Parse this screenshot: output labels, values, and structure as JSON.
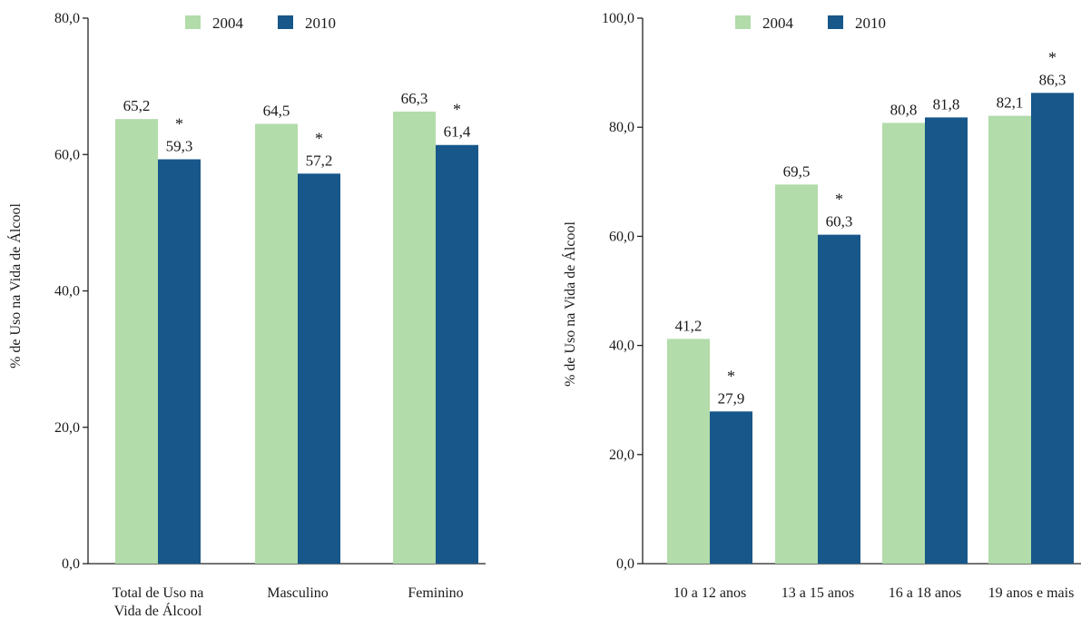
{
  "colors": {
    "s2004": "#b2dcaa",
    "s2010": "#17578a",
    "axis": "#222222"
  },
  "chart_data": [
    {
      "type": "bar",
      "title": "",
      "xlabel": "",
      "ylabel": "% de Uso na Vida de Álcool",
      "ylim": [
        0,
        80
      ],
      "yticks": [
        0,
        20,
        40,
        60,
        80
      ],
      "ytick_labels": [
        "0,0",
        "20,0",
        "40,0",
        "60,0",
        "80,0"
      ],
      "categories": [
        [
          "Total de Uso na",
          "Vida de Álcool"
        ],
        [
          "Masculino"
        ],
        [
          "Feminino"
        ]
      ],
      "legend": "top",
      "series": [
        {
          "name": "2004",
          "values": [
            65.2,
            64.5,
            66.3
          ],
          "labels": [
            "65,2",
            "64,5",
            "66,3"
          ],
          "sig": [
            false,
            false,
            false
          ]
        },
        {
          "name": "2010",
          "values": [
            59.3,
            57.2,
            61.4
          ],
          "labels": [
            "59,3",
            "57,2",
            "61,4"
          ],
          "sig": [
            true,
            true,
            true
          ]
        }
      ],
      "annotation": "*"
    },
    {
      "type": "bar",
      "title": "",
      "xlabel": "",
      "ylabel": "% de Uso na Vida de Álcool",
      "ylim": [
        0,
        100
      ],
      "yticks": [
        0,
        20,
        40,
        60,
        80,
        100
      ],
      "ytick_labels": [
        "0,0",
        "20,0",
        "40,0",
        "60,0",
        "80,0",
        "100,0"
      ],
      "categories": [
        [
          "10 a 12 anos"
        ],
        [
          "13 a 15 anos"
        ],
        [
          "16 a 18 anos"
        ],
        [
          "19 anos e mais"
        ]
      ],
      "legend": "top",
      "series": [
        {
          "name": "2004",
          "values": [
            41.2,
            69.5,
            80.8,
            82.1
          ],
          "labels": [
            "41,2",
            "69,5",
            "80,8",
            "82,1"
          ],
          "sig": [
            false,
            false,
            false,
            false
          ]
        },
        {
          "name": "2010",
          "values": [
            27.9,
            60.3,
            81.8,
            86.3
          ],
          "labels": [
            "27,9",
            "60,3",
            "81,8",
            "86,3"
          ],
          "sig": [
            true,
            true,
            false,
            true
          ]
        }
      ],
      "annotation": "*"
    }
  ]
}
